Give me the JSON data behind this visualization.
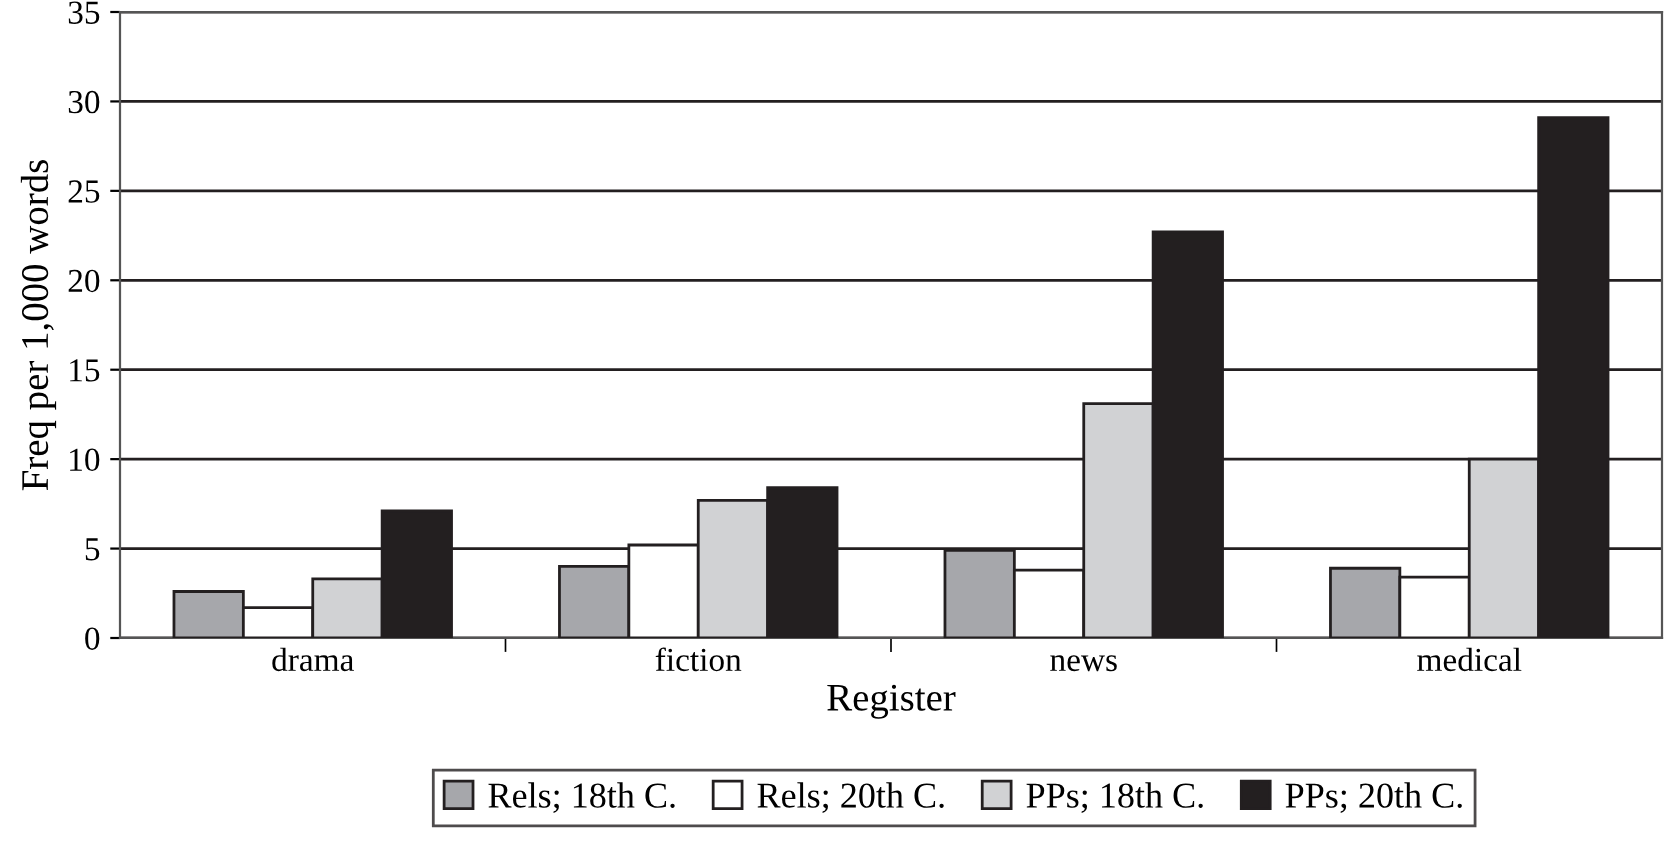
{
  "chart_data": {
    "type": "bar",
    "xlabel": "Register",
    "ylabel": "Freq per 1,000 words",
    "categories": [
      "drama",
      "fiction",
      "news",
      "medical"
    ],
    "series": [
      {
        "name": "Rels; 18th C.",
        "color": "#a6a7ab",
        "values": [
          2.6,
          4.0,
          4.9,
          3.9
        ]
      },
      {
        "name": "Rels; 20th C.",
        "color": "#ffffff",
        "values": [
          1.7,
          5.2,
          3.8,
          3.4
        ]
      },
      {
        "name": "PPs; 18th C.",
        "color": "#d1d2d4",
        "values": [
          3.3,
          7.7,
          13.1,
          10.0
        ]
      },
      {
        "name": "PPs; 20th C.",
        "color": "#231f20",
        "values": [
          7.1,
          8.4,
          22.7,
          29.1
        ]
      }
    ],
    "ylim": [
      0,
      35
    ],
    "yticks": [
      0,
      5,
      10,
      15,
      20,
      25,
      30,
      35
    ],
    "grid": "y",
    "legend": "bottom"
  }
}
